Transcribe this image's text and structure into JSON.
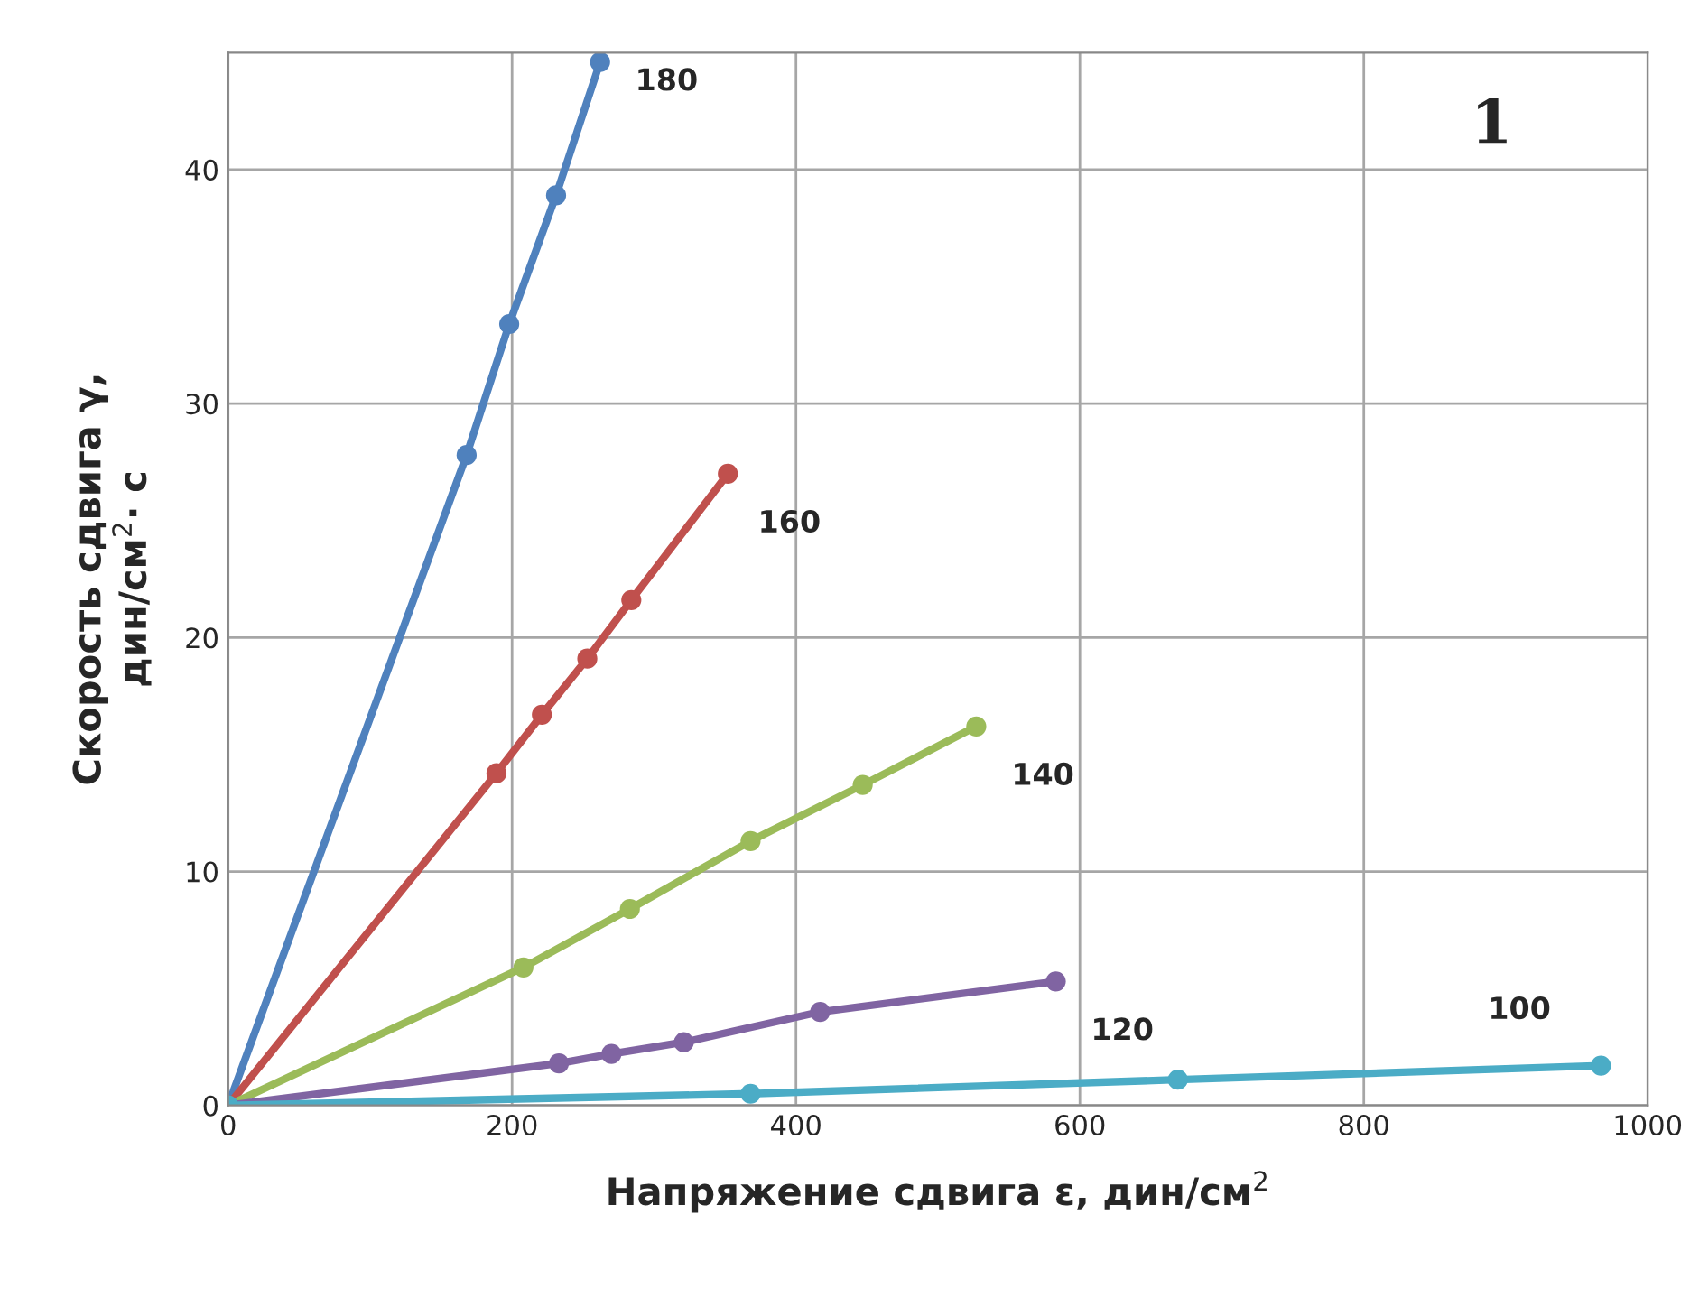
{
  "chart_data": {
    "type": "line",
    "xlabel": "Напряжение сдвига ε, дин/см$^{2}$",
    "ylabel": "Скорость сдвига γ,\nдин/см$^{2}$· с",
    "annotations": [
      "1"
    ],
    "xlim": [
      0,
      1000
    ],
    "ylim": [
      0,
      45
    ],
    "xticks": [
      0,
      200,
      400,
      600,
      800,
      1000
    ],
    "yticks": [
      0,
      10,
      20,
      30,
      40
    ],
    "grid": true,
    "marker": "circle",
    "line_style": "solid",
    "series": [
      {
        "name": "180",
        "color": "#4f81bd",
        "x": [
          0,
          168,
          198,
          231,
          262
        ],
        "values": [
          0,
          27.8,
          33.4,
          38.9,
          44.6
        ]
      },
      {
        "name": "160",
        "color": "#c0504d",
        "x": [
          0,
          189,
          221,
          253,
          284,
          352
        ],
        "values": [
          0,
          14.2,
          16.7,
          19.1,
          21.6,
          27.0
        ]
      },
      {
        "name": "140",
        "color": "#9bbb59",
        "x": [
          0,
          208,
          283,
          368,
          447,
          527
        ],
        "values": [
          0,
          5.9,
          8.4,
          11.3,
          13.7,
          16.2
        ]
      },
      {
        "name": "120",
        "color": "#8064a2",
        "x": [
          0,
          233,
          270,
          321,
          417,
          583
        ],
        "values": [
          0,
          1.8,
          2.2,
          2.7,
          4.0,
          5.3
        ]
      },
      {
        "name": "100",
        "color": "#4bacc6",
        "x": [
          0,
          368,
          669,
          967
        ],
        "values": [
          0,
          0.5,
          1.1,
          1.7
        ]
      }
    ]
  }
}
